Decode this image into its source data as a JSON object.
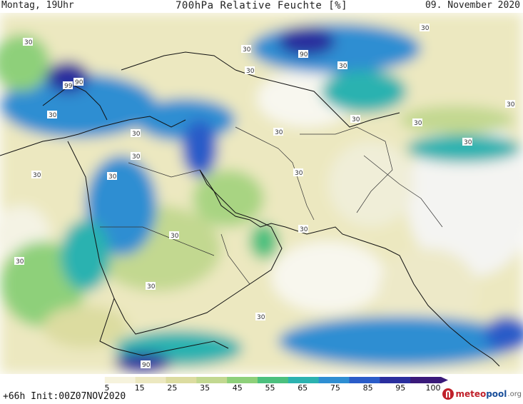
{
  "header": {
    "left": "Montag, 19Uhr",
    "center": "700hPa Relative Feuchte [%]",
    "right": "09. November 2020"
  },
  "footer": {
    "run": "+66h Init:00Z07NOV2020"
  },
  "logo": {
    "part1": "meteo",
    "part2": "pool",
    "part3": ".org"
  },
  "legend": {
    "ticks": [
      "5",
      "15",
      "25",
      "35",
      "45",
      "55",
      "65",
      "75",
      "85",
      "95",
      "100"
    ],
    "colors": [
      "#ffffff",
      "#f6f3dd",
      "#ece8c0",
      "#dcdca0",
      "#c2d890",
      "#8ed07a",
      "#4cc07e",
      "#2cb2b0",
      "#2e8ed2",
      "#2a5cc8",
      "#2a2e9e",
      "#3a1a7a"
    ]
  },
  "contour_labels": [
    "30",
    "30",
    "90",
    "30",
    "99",
    "90",
    "30",
    "30",
    "30",
    "30",
    "30",
    "30",
    "30",
    "30",
    "30",
    "30",
    "30",
    "30",
    "30",
    "30",
    "30",
    "30",
    "30",
    "90",
    "30"
  ]
}
